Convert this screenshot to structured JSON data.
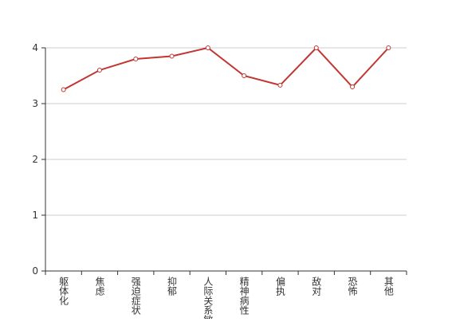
{
  "chart_data": {
    "type": "line",
    "categories": [
      "躯体化",
      "焦虑",
      "强迫症状",
      "抑郁",
      "人际关系敏感",
      "精神病性",
      "偏执",
      "敌对",
      "恐怖",
      "其他"
    ],
    "values": [
      3.25,
      3.6,
      3.8,
      3.85,
      4.0,
      3.5,
      3.33,
      4.0,
      3.3,
      4.0
    ],
    "color": "#c23531",
    "ylim": [
      0,
      4
    ],
    "yticks": [
      0,
      1,
      2,
      3,
      4
    ],
    "grid": true
  }
}
